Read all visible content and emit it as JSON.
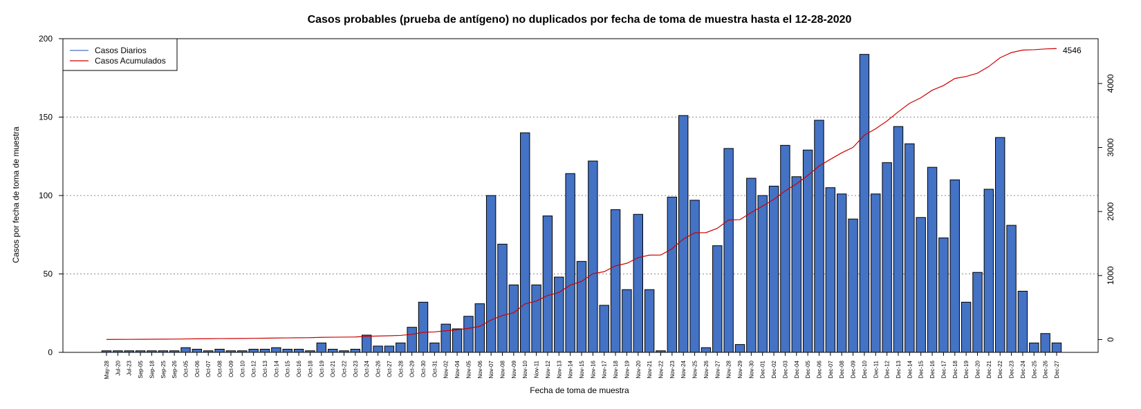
{
  "chart_data": {
    "type": "bar",
    "title": "Casos probables (prueba de antígeno) no duplicados por fecha de toma de muestra hasta el 12-28-2020",
    "xlabel": "Fecha de toma de muestra",
    "ylabel": "Casos por fecha de toma de muestra",
    "ylim": [
      0,
      200
    ],
    "y_ticks": [
      0,
      50,
      100,
      150,
      200
    ],
    "y2lim": [
      -200,
      4700
    ],
    "y2_ticks": [
      0,
      1000,
      2000,
      3000,
      4000
    ],
    "grid": "horizontal dotted",
    "legend_position": "top-left",
    "final_cumulative_label": "4546",
    "categories": [
      "May-28",
      "Jul-20",
      "Jul-23",
      "Sep-05",
      "Sep-18",
      "Sep-25",
      "Sep-26",
      "Oct-05",
      "Oct-06",
      "Oct-07",
      "Oct-08",
      "Oct-09",
      "Oct-10",
      "Oct-12",
      "Oct-13",
      "Oct-14",
      "Oct-15",
      "Oct-16",
      "Oct-18",
      "Oct-19",
      "Oct-21",
      "Oct-22",
      "Oct-23",
      "Oct-24",
      "Oct-26",
      "Oct-27",
      "Oct-28",
      "Oct-29",
      "Oct-30",
      "Oct-31",
      "Nov-02",
      "Nov-04",
      "Nov-05",
      "Nov-06",
      "Nov-07",
      "Nov-08",
      "Nov-09",
      "Nov-10",
      "Nov-11",
      "Nov-12",
      "Nov-13",
      "Nov-14",
      "Nov-15",
      "Nov-16",
      "Nov-17",
      "Nov-18",
      "Nov-19",
      "Nov-20",
      "Nov-21",
      "Nov-22",
      "Nov-23",
      "Nov-24",
      "Nov-25",
      "Nov-26",
      "Nov-27",
      "Nov-28",
      "Nov-29",
      "Nov-30",
      "Dec-01",
      "Dec-02",
      "Dec-03",
      "Dec-04",
      "Dec-05",
      "Dec-06",
      "Dec-07",
      "Dec-08",
      "Dec-09",
      "Dec-10",
      "Dec-11",
      "Dec-12",
      "Dec-13",
      "Dec-14",
      "Dec-15",
      "Dec-16",
      "Dec-17",
      "Dec-18",
      "Dec-19",
      "Dec-20",
      "Dec-21",
      "Dec-22",
      "Dec-23",
      "Dec-24",
      "Dec-25",
      "Dec-26",
      "Dec-27"
    ],
    "series": [
      {
        "name": "Casos Diarios",
        "kind": "bar",
        "axis": "left",
        "color": "#4472C4",
        "values": [
          1,
          1,
          1,
          1,
          1,
          1,
          1,
          3,
          2,
          1,
          2,
          1,
          1,
          2,
          2,
          3,
          2,
          2,
          1,
          6,
          2,
          1,
          2,
          11,
          4,
          4,
          6,
          16,
          32,
          6,
          18,
          15,
          23,
          31,
          100,
          69,
          43,
          140,
          43,
          87,
          48,
          114,
          58,
          122,
          30,
          91,
          40,
          88,
          40,
          1,
          99,
          151,
          97,
          3,
          68,
          130,
          5,
          111,
          100,
          106,
          132,
          112,
          129,
          148,
          105,
          101,
          85,
          190,
          101,
          121,
          144,
          133,
          86,
          118,
          73,
          110,
          32,
          51,
          104,
          137,
          81,
          39,
          6,
          12,
          6
        ]
      },
      {
        "name": "Casos Acumulados",
        "kind": "line",
        "axis": "right",
        "color": "#CC0000",
        "values": [
          1,
          2,
          3,
          4,
          5,
          6,
          7,
          10,
          12,
          13,
          15,
          16,
          17,
          19,
          21,
          24,
          26,
          28,
          29,
          35,
          37,
          38,
          40,
          51,
          55,
          59,
          65,
          81,
          113,
          119,
          137,
          152,
          175,
          206,
          306,
          375,
          418,
          558,
          601,
          688,
          736,
          850,
          908,
          1030,
          1060,
          1151,
          1191,
          1279,
          1319,
          1320,
          1419,
          1570,
          1667,
          1670,
          1738,
          1868,
          1873,
          1984,
          2084,
          2190,
          2322,
          2434,
          2563,
          2711,
          2816,
          2917,
          3002,
          3192,
          3293,
          3414,
          3558,
          3691,
          3777,
          3895,
          3968,
          4078,
          4110,
          4161,
          4265,
          4402,
          4483,
          4522,
          4528,
          4540,
          4546
        ]
      }
    ]
  }
}
